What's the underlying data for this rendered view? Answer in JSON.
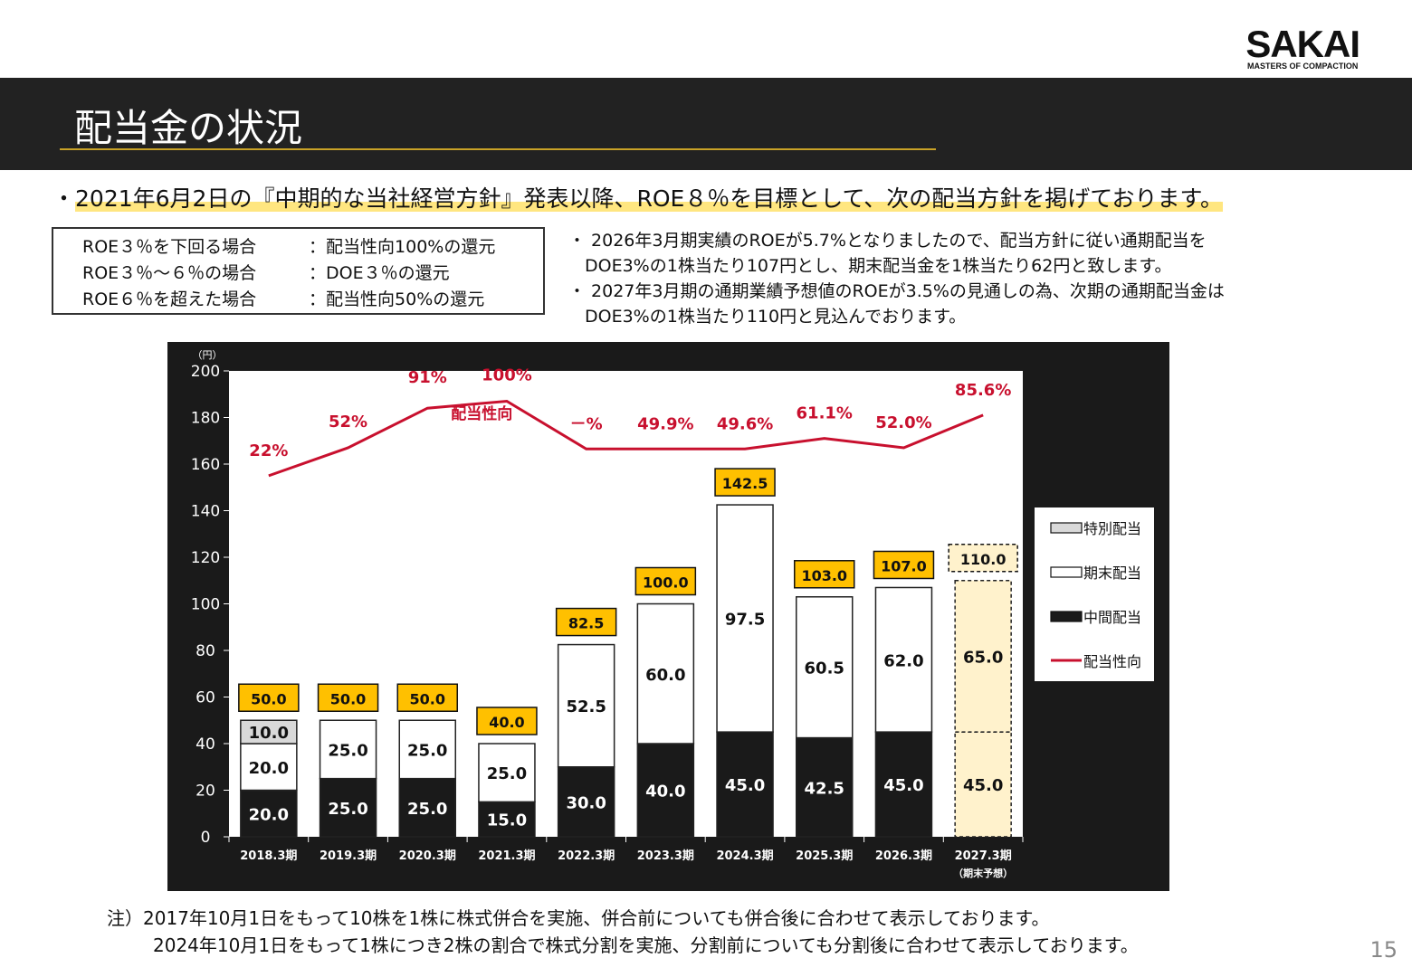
{
  "logo": {
    "wordmark": "SAKAI",
    "tagline": "MASTERS OF COMPACTION"
  },
  "title": "配当金の状況",
  "headline": {
    "bullet": "・",
    "text": "2021年6月2日の『中期的な当社経営方針』発表以降、ROE８％を目標として、次の配当方針を掲げております。"
  },
  "policy": [
    {
      "condition": "ROE３％を下回る場合",
      "sep": "：",
      "action": "配当性向100%の還元"
    },
    {
      "condition": "ROE３％～６％の場合",
      "sep": "：",
      "action": "DOE３％の還元"
    },
    {
      "condition": "ROE６％を超えた場合",
      "sep": "：",
      "action": "配当性向50%の還元"
    }
  ],
  "notes": [
    {
      "line1": "・ 2026年3月期実績のROEが5.7%となりましたので、配当方針に従い通期配当を",
      "line2": "DOE3%の1株当たり107円とし、期末配当金を1株当たり62円と致します。"
    },
    {
      "line1": "・ 2027年3月期の通期業績予想値のROEが3.5%の見通しの為、次期の通期配当金は",
      "line2": "DOE3%の1株当たり110円と見込んでおります。"
    }
  ],
  "chart_data": {
    "type": "bar",
    "stacked": true,
    "unit_label": "（円）",
    "ylim": [
      0,
      200
    ],
    "yticks": [
      0,
      20,
      40,
      60,
      80,
      100,
      120,
      140,
      160,
      180,
      200
    ],
    "categories": [
      "2018.3期",
      "2019.3期",
      "2020.3期",
      "2021.3期",
      "2022.3期",
      "2023.3期",
      "2024.3期",
      "2025.3期",
      "2026.3期",
      "2027.3期"
    ],
    "category_sublabels": [
      "",
      "",
      "",
      "",
      "",
      "",
      "",
      "",
      "",
      "（期末予想）"
    ],
    "series": [
      {
        "name": "中間配当",
        "color": "#1a1a1a",
        "values": [
          20.0,
          25.0,
          25.0,
          15.0,
          30.0,
          40.0,
          45.0,
          42.5,
          45.0,
          45.0
        ],
        "labels": [
          "20.0",
          "25.0",
          "25.0",
          "15.0",
          "30.0",
          "40.0",
          "45.0",
          "42.5",
          "45.0",
          "45.0"
        ]
      },
      {
        "name": "期末配当",
        "color": "#ffffff",
        "values": [
          20.0,
          25.0,
          25.0,
          25.0,
          52.5,
          60.0,
          97.5,
          60.5,
          62.0,
          65.0
        ],
        "labels": [
          "20.0",
          "25.0",
          "25.0",
          "25.0",
          "52.5",
          "60.0",
          "97.5",
          "60.5",
          "62.0",
          "65.0"
        ]
      },
      {
        "name": "特別配当",
        "color": "#d9d9d9",
        "values": [
          10.0,
          0,
          0,
          0,
          0,
          0,
          0,
          0,
          0,
          0
        ],
        "labels": [
          "10.0",
          "",
          "",
          "",
          "",
          "",
          "",
          "",
          "",
          ""
        ]
      }
    ],
    "totals": [
      50.0,
      50.0,
      50.0,
      40.0,
      82.5,
      100.0,
      142.5,
      103.0,
      107.0,
      110.0
    ],
    "total_labels": [
      "50.0",
      "50.0",
      "50.0",
      "40.0",
      "82.5",
      "100.0",
      "142.5",
      "103.0",
      "107.0",
      "110.0"
    ],
    "forecast_index": 9,
    "forecast_fill": "#fff2cc",
    "total_badge_color": "#ffc000",
    "payout_ratio": {
      "name": "配当性向",
      "color": "#c8102e",
      "labels": [
        "22%",
        "52%",
        "91%",
        "100%",
        "－%",
        "49.9%",
        "49.6%",
        "61.1%",
        "52.0%",
        "85.6%"
      ],
      "line_y": [
        155,
        167,
        184,
        187,
        166.5,
        166.5,
        166.5,
        171,
        167,
        181
      ],
      "series_label": "配当性向"
    },
    "legend": [
      "特別配当",
      "期末配当",
      "中間配当",
      "配当性向"
    ],
    "legend_position": "right"
  },
  "footnote": {
    "prefix": "注）",
    "line1": "2017年10月1日をもって10株を1株に株式併合を実施、併合前についても併合後に合わせて表示しております。",
    "line2": "2024年10月1日をもって1株につき2株の割合で株式分割を実施、分割前についても分割後に合わせて表示しております。"
  },
  "page_number": "15"
}
